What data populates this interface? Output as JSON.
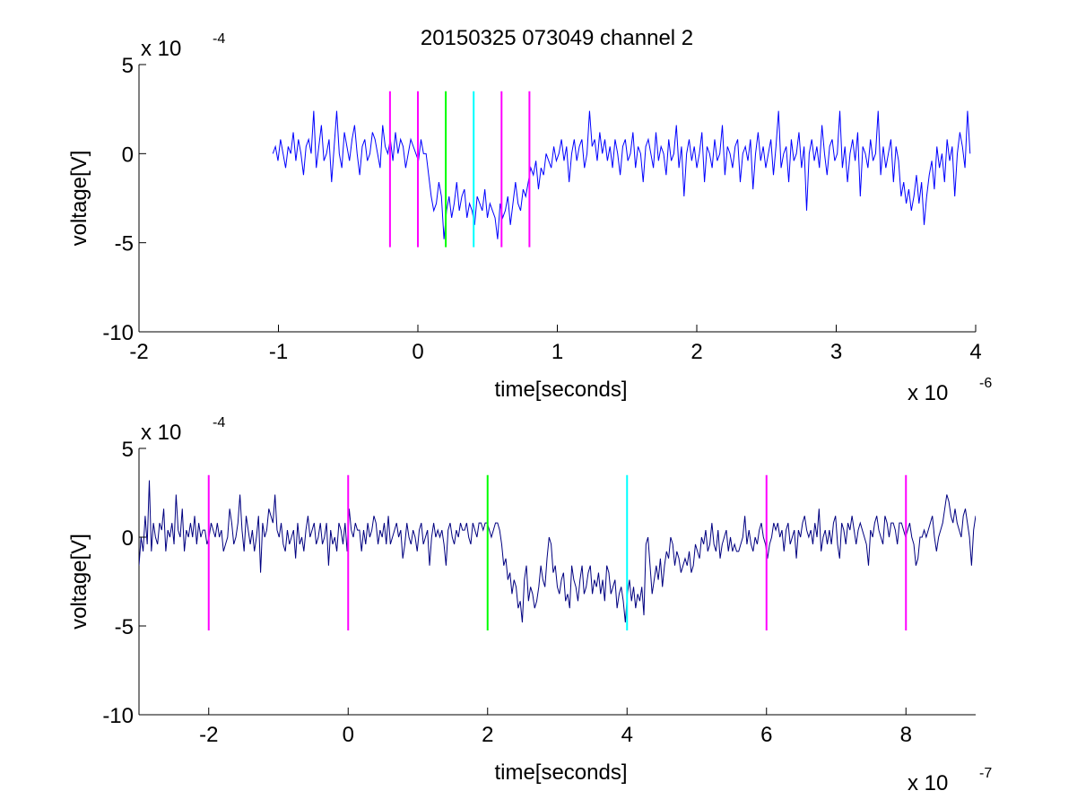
{
  "figure": {
    "title": "20150325 073049 channel 2"
  },
  "chart_data": [
    {
      "type": "line",
      "title": "20150325 073049 channel 2",
      "xlabel": "time[seconds]",
      "ylabel": "voltage[V]",
      "x_multiplier": {
        "base": "x 10",
        "exponent": "-6"
      },
      "y_multiplier": {
        "base": "x 10",
        "exponent": "-4"
      },
      "xlim": [
        -2,
        4
      ],
      "ylim": [
        -10,
        5
      ],
      "x_ticks": [
        -2,
        -1,
        0,
        1,
        2,
        3,
        4
      ],
      "x_tick_labels": [
        "-2",
        "-1",
        "0",
        "1",
        "2",
        "3",
        "4"
      ],
      "y_ticks": [
        -10,
        -5,
        0,
        5
      ],
      "y_tick_labels": [
        "-10",
        "-5",
        "0",
        "5"
      ],
      "grid": false,
      "series": [
        {
          "color": "#0000ff",
          "x_start": -1.04,
          "x_end": 3.96,
          "values": [
            0,
            0.4,
            -0.4,
            0.8,
            0,
            -0.8,
            0.4,
            0,
            1.2,
            -0.4,
            0.8,
            0,
            -1.2,
            0.4,
            0.8,
            0,
            2.4,
            -0.8,
            0.4,
            1.6,
            -0.4,
            0,
            0.8,
            -1.6,
            0.4,
            2.4,
            0,
            -0.8,
            1.2,
            0.4,
            -0.4,
            0.8,
            1.6,
            0,
            -1.2,
            0.4,
            0.8,
            -0.4,
            0,
            1.2,
            0.8,
            0,
            -0.8,
            1.6,
            0.4,
            0,
            0.8,
            -0.4,
            1.2,
            0,
            0.8,
            0.4,
            -0.8,
            0,
            0.8,
            0.4,
            0,
            -0.4,
            0.8,
            0,
            0,
            -1.2,
            -2.4,
            -3.2,
            -2.8,
            -1.6,
            -2.4,
            -4.8,
            -3.2,
            -2.4,
            -3.6,
            -2.8,
            -1.6,
            -3.2,
            -2.4,
            -2.0,
            -3.6,
            -2.8,
            -3.2,
            -4.0,
            -2.4,
            -2.8,
            -3.2,
            -2.0,
            -3.6,
            -2.8,
            -3.2,
            -3.6,
            -4.8,
            -2.8,
            -3.6,
            -3.2,
            -2.4,
            -4.0,
            -2.8,
            -1.6,
            -2.8,
            -3.2,
            -2.0,
            -2.4,
            -1.6,
            -0.8,
            -1.2,
            -0.4,
            -2.0,
            -0.8,
            -1.2,
            0,
            -0.4,
            -0.8,
            0.4,
            -0.4,
            0,
            0.8,
            -0.4,
            0.4,
            -1.6,
            0,
            0.8,
            -0.4,
            0.4,
            0.8,
            -0.8,
            0,
            2.4,
            0.4,
            0.8,
            -0.4,
            1.2,
            0,
            0.8,
            -0.4,
            0.4,
            -0.8,
            0.8,
            0,
            -1.2,
            0.4,
            0.8,
            -0.4,
            0,
            1.2,
            -0.8,
            0.4,
            0,
            -1.6,
            0.4,
            0.8,
            0,
            -0.8,
            1.2,
            -0.4,
            0.4,
            0,
            -1.2,
            0.8,
            -0.4,
            0,
            1.6,
            -0.8,
            0.4,
            -2.4,
            0,
            0.8,
            -0.4,
            0.4,
            -0.8,
            0,
            1.2,
            -1.6,
            0.4,
            0,
            -0.8,
            0.8,
            -0.4,
            0,
            1.6,
            -1.2,
            0.4,
            0,
            -0.8,
            0.4,
            0.8,
            -1.6,
            0,
            0.4,
            -0.4,
            0.8,
            -2.0,
            0,
            1.2,
            -0.4,
            0.4,
            -0.8,
            0,
            0.8,
            -1.2,
            0.4,
            2.4,
            -0.8,
            0,
            0.4,
            -1.6,
            0.8,
            -0.4,
            0,
            1.2,
            -0.8,
            0.4,
            -3.2,
            0,
            0.8,
            -0.4,
            0.4,
            -0.8,
            1.6,
            0,
            -1.2,
            0.4,
            0.8,
            -0.4,
            0,
            2.4,
            -0.8,
            0.4,
            -1.6,
            0,
            0.8,
            -0.4,
            1.2,
            -2.4,
            0.4,
            0,
            -0.8,
            0.8,
            -0.4,
            0,
            2.4,
            -1.2,
            0.4,
            -0.8,
            0,
            0.8,
            -1.6,
            0.4,
            -0.4,
            -2.4,
            -1.6,
            -2.8,
            -2.0,
            -3.2,
            -2.4,
            -1.2,
            -2.8,
            -1.6,
            -4.0,
            -2.4,
            -1.2,
            -0.4,
            -2.0,
            0.4,
            -0.8,
            0,
            -1.6,
            0.8,
            -0.4,
            0.4,
            -2.4,
            0,
            1.2,
            0.4,
            -0.8,
            2.4,
            0
          ]
        }
      ],
      "markers": [
        {
          "x": -0.2,
          "y_min": -5.25,
          "y_max": 3.5,
          "color": "#ff00ff"
        },
        {
          "x": 0.0,
          "y_min": -5.25,
          "y_max": 3.5,
          "color": "#ff00ff"
        },
        {
          "x": 0.2,
          "y_min": -5.25,
          "y_max": 3.5,
          "color": "#00ff00"
        },
        {
          "x": 0.4,
          "y_min": -5.25,
          "y_max": 3.5,
          "color": "#00ffff"
        },
        {
          "x": 0.6,
          "y_min": -5.25,
          "y_max": 3.5,
          "color": "#ff00ff"
        },
        {
          "x": 0.8,
          "y_min": -5.25,
          "y_max": 3.5,
          "color": "#ff00ff"
        }
      ]
    },
    {
      "type": "line",
      "title": "",
      "xlabel": "time[seconds]",
      "ylabel": "voltage[V]",
      "x_multiplier": {
        "base": "x 10",
        "exponent": "-7"
      },
      "y_multiplier": {
        "base": "x 10",
        "exponent": "-4"
      },
      "xlim": [
        -3,
        9
      ],
      "ylim": [
        -10,
        5
      ],
      "x_ticks": [
        -2,
        0,
        2,
        4,
        6,
        8
      ],
      "x_tick_labels": [
        "-2",
        "0",
        "2",
        "4",
        "6",
        "8"
      ],
      "y_ticks": [
        -10,
        -5,
        0,
        5
      ],
      "y_tick_labels": [
        "-10",
        "-5",
        "0",
        "5"
      ],
      "grid": false,
      "series": [
        {
          "color": "#000080",
          "x_start": -3.0,
          "x_end": 9.0,
          "values": [
            -1.6,
            0,
            -0.8,
            1.2,
            -0.4,
            3.2,
            -0.8,
            0.8,
            0,
            -0.4,
            0.8,
            0.4,
            1.6,
            -0.8,
            0.4,
            0,
            0.8,
            -0.4,
            2.4,
            0.4,
            0,
            1.6,
            -0.8,
            0.4,
            0,
            0.8,
            0,
            1.2,
            -0.4,
            0.8,
            0,
            0.4,
            0.4,
            -0.4,
            0,
            0.8,
            0.4,
            0,
            0.8,
            0,
            0.4,
            -0.8,
            -0.4,
            0,
            1.6,
            0.8,
            -0.4,
            0,
            0.8,
            2.4,
            0.4,
            -0.8,
            1.2,
            0.4,
            -0.4,
            0.4,
            -0.8,
            0,
            1.2,
            -2.0,
            0.8,
            0,
            0.4,
            1.6,
            1.2,
            0.8,
            2.4,
            0.4,
            0,
            0.8,
            -0.4,
            -0.8,
            0.4,
            -0.4,
            0,
            0.4,
            -1.2,
            0.8,
            -0.4,
            0,
            -0.8,
            0.4,
            1.2,
            0,
            0.4,
            0.8,
            -0.4,
            0,
            0.8,
            -0.4,
            0,
            0.8,
            -1.6,
            0.4,
            -0.4,
            0,
            -0.8,
            0.8,
            0.4,
            -0.4,
            0.8,
            -0.8,
            1.6,
            0.4,
            0,
            0.8,
            0.4,
            0.4,
            -0.8,
            0.4,
            -0.4,
            0.8,
            0,
            0.4,
            1.2,
            0.8,
            -0.4,
            0.4,
            0,
            0.8,
            -0.4,
            1.2,
            -0.4,
            0,
            0.4,
            0.8,
            0,
            0.4,
            -1.2,
            -0.4,
            0.8,
            0,
            -0.4,
            0.4,
            0,
            -0.8,
            0.4,
            0.8,
            -0.4,
            0,
            0.4,
            -1.6,
            0,
            0.8,
            0,
            0.4,
            0,
            0.4,
            -0.4,
            -1.6,
            0.4,
            0.8,
            0,
            -0.4,
            0.4,
            0,
            0.8,
            0.4,
            0.4,
            0.8,
            0,
            -0.4,
            0.8,
            0.4,
            0,
            0.8,
            0.8,
            0.4,
            0.8,
            0.8,
            0.4,
            0,
            0.4,
            0.8,
            0.8,
            0.4,
            -0.4,
            -1.6,
            -1.2,
            -2.4,
            -2.0,
            -3.2,
            -2.4,
            -2.8,
            -4.0,
            -3.6,
            -4.8,
            -2.4,
            -1.6,
            -3.6,
            -2.8,
            -3.2,
            -4.0,
            -3.6,
            -2.8,
            -1.6,
            -2.4,
            -2.8,
            -1.2,
            0,
            -0.4,
            -2.0,
            -1.6,
            -2.8,
            -3.2,
            -2.4,
            -2.0,
            -3.6,
            -3.2,
            -4.0,
            -1.6,
            -2.4,
            -2.8,
            -3.6,
            -2.4,
            -1.6,
            -3.2,
            -2.8,
            -2.0,
            -1.6,
            -3.2,
            -2.4,
            -2.8,
            -2.0,
            -3.2,
            -2.4,
            -3.6,
            -1.6,
            -2.0,
            -3.2,
            -2.8,
            -2.4,
            -4.0,
            -3.2,
            -2.8,
            -3.6,
            -4.8,
            -3.2,
            -2.4,
            -3.6,
            -2.8,
            -4.0,
            -3.2,
            -3.6,
            -2.8,
            -4.4,
            -0.4,
            0,
            -1.6,
            -3.2,
            -2.4,
            -1.6,
            -2.4,
            -1.2,
            -2.8,
            -1.6,
            -0.8,
            -1.2,
            0,
            -0.4,
            -1.6,
            -0.8,
            -1.2,
            -2.0,
            -1.6,
            -1.2,
            -1.6,
            -0.8,
            -2.0,
            -1.6,
            -0.4,
            -0.8,
            -1.2,
            0,
            -0.4,
            0.4,
            -0.8,
            -0.4,
            0.8,
            -0.4,
            -0.8,
            0.4,
            -1.2,
            -0.4,
            0,
            0.4,
            -0.8,
            0,
            -0.8,
            -0.4,
            -0.8,
            -0.8,
            -0.4,
            0,
            1.2,
            -0.4,
            0.4,
            -0.4,
            -0.8,
            0,
            -0.4,
            0.4,
            0.8,
            0,
            -0.4,
            -1.2,
            -0.4,
            0,
            0.8,
            0.4,
            0.8,
            0,
            0.4,
            -0.8,
            0.4,
            0.8,
            -0.4,
            0,
            0.4,
            -1.2,
            0.4,
            0,
            0.8,
            1.2,
            0.4,
            0,
            0.4,
            -0.4,
            0.8,
            0,
            1.6,
            -0.8,
            0,
            0.4,
            -0.4,
            0.4,
            -0.4,
            0.8,
            1.2,
            -0.4,
            -1.2,
            0.8,
            0.4,
            -0.4,
            0.8,
            0.4,
            1.2,
            0.4,
            -0.4,
            0.4,
            0.8,
            0.4,
            0,
            -0.4,
            -1.6,
            0.4,
            0,
            0.8,
            1.2,
            0.4,
            0,
            -0.4,
            1.2,
            0.8,
            0,
            0.8,
            0.8,
            0.4,
            -0.4,
            0.8,
            0.8,
            0.4,
            0,
            0.4,
            0.8,
            0,
            -0.4,
            -1.6,
            -1.2,
            0,
            0,
            0.4,
            0,
            0.4,
            0.8,
            1.2,
            0,
            -0.8,
            0,
            0.4,
            0.8,
            1.6,
            2.4,
            2.0,
            1.2,
            0.8,
            1.6,
            0.8,
            0.4,
            0,
            1.2,
            1.6,
            0.8,
            0,
            -1.6,
            0.4,
            1.2
          ]
        }
      ],
      "markers": [
        {
          "x": -2,
          "y_min": -5.25,
          "y_max": 3.5,
          "color": "#ff00ff"
        },
        {
          "x": 0,
          "y_min": -5.25,
          "y_max": 3.5,
          "color": "#ff00ff"
        },
        {
          "x": 2,
          "y_min": -5.25,
          "y_max": 3.5,
          "color": "#00ff00"
        },
        {
          "x": 4,
          "y_min": -5.25,
          "y_max": 3.5,
          "color": "#00ffff"
        },
        {
          "x": 6,
          "y_min": -5.25,
          "y_max": 3.5,
          "color": "#ff00ff"
        },
        {
          "x": 8,
          "y_min": -5.25,
          "y_max": 3.5,
          "color": "#ff00ff"
        }
      ]
    }
  ]
}
